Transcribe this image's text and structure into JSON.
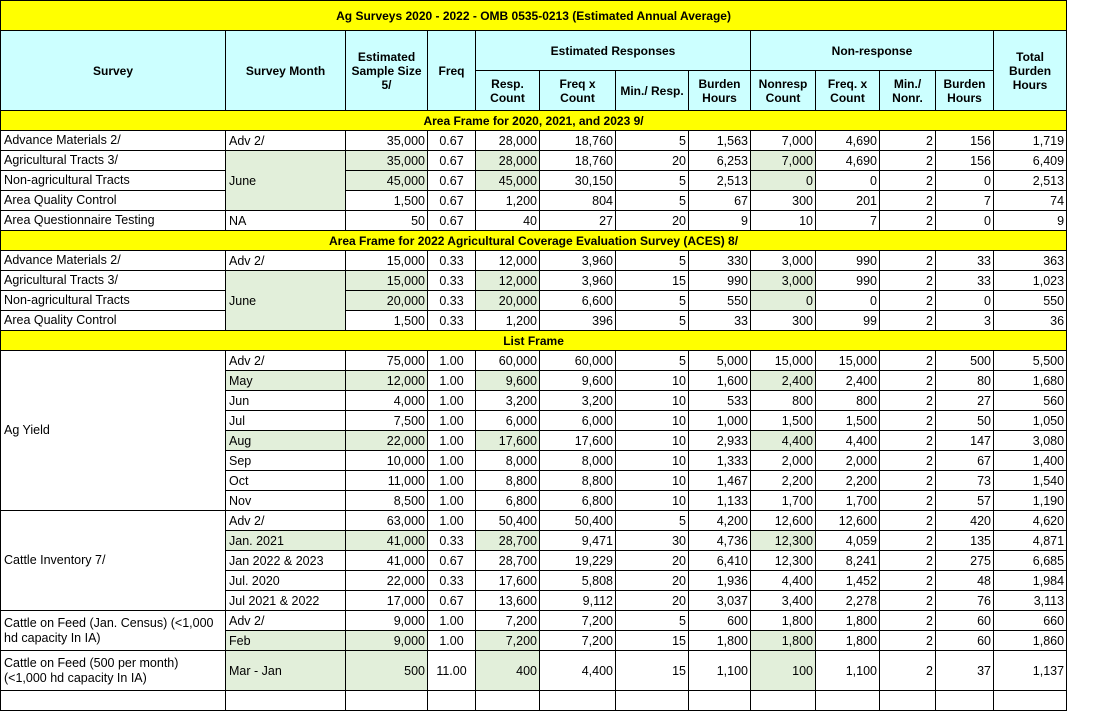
{
  "title": "Ag Surveys 2020 - 2022 - OMB 0535-0213 (Estimated Annual Average)",
  "headers": {
    "survey": "Survey",
    "month": "Survey Month",
    "sample": "Estimated Sample Size 5/",
    "freq": "Freq",
    "est_resp": "Estimated Responses",
    "nonresp": "Non-response",
    "total": "Total Burden Hours",
    "resp_count": "Resp. Count",
    "freq_x_count": "Freq x Count",
    "min_resp": "Min./ Resp.",
    "burden": "Burden Hours",
    "nonresp_count": "Nonresp Count",
    "freq_x_count2": "Freq. x Count",
    "min_nonr": "Min./ Nonr.",
    "burden2": "Burden Hours"
  },
  "shade_color": "#e2efda",
  "sections": [
    {
      "title": "Area Frame for 2020, 2021, and 2023  9/",
      "rows": [
        {
          "survey": "Advance Materials 2/",
          "month": "Adv 2/",
          "shaded": false,
          "v": [
            "35,000",
            "0.67",
            "28,000",
            "18,760",
            "5",
            "1,563",
            "7,000",
            "4,690",
            "2",
            "156",
            "1,719"
          ]
        },
        {
          "survey": "Agricultural Tracts 3/",
          "month": "June",
          "month_shaded": true,
          "shaded": true,
          "v": [
            "35,000",
            "0.67",
            "28,000",
            "18,760",
            "20",
            "6,253",
            "7,000",
            "4,690",
            "2",
            "156",
            "6,409"
          ]
        },
        {
          "survey": "Non-agricultural Tracts",
          "month": null,
          "shaded": true,
          "v": [
            "45,000",
            "0.67",
            "45,000",
            "30,150",
            "5",
            "2,513",
            "0",
            "0",
            "2",
            "0",
            "2,513"
          ]
        },
        {
          "survey": "Area Quality Control",
          "month": null,
          "shaded": false,
          "v": [
            "1,500",
            "0.67",
            "1,200",
            "804",
            "5",
            "67",
            "300",
            "201",
            "2",
            "7",
            "74"
          ]
        },
        {
          "survey": "Area Questionnaire Testing",
          "month": "NA",
          "shaded": false,
          "v": [
            "50",
            "0.67",
            "40",
            "27",
            "20",
            "9",
            "10",
            "7",
            "2",
            "0",
            "9"
          ]
        }
      ]
    },
    {
      "title": "Area Frame for 2022 Agricultural Coverage Evaluation Survey (ACES) 8/",
      "rows": [
        {
          "survey": "Advance Materials 2/",
          "month": "Adv 2/",
          "shaded": false,
          "v": [
            "15,000",
            "0.33",
            "12,000",
            "3,960",
            "5",
            "330",
            "3,000",
            "990",
            "2",
            "33",
            "363"
          ]
        },
        {
          "survey": "Agricultural Tracts 3/",
          "month": "June",
          "month_shaded": true,
          "shaded": true,
          "v": [
            "15,000",
            "0.33",
            "12,000",
            "3,960",
            "15",
            "990",
            "3,000",
            "990",
            "2",
            "33",
            "1,023"
          ]
        },
        {
          "survey": "Non-agricultural Tracts",
          "month": null,
          "shaded": true,
          "v": [
            "20,000",
            "0.33",
            "20,000",
            "6,600",
            "5",
            "550",
            "0",
            "0",
            "2",
            "0",
            "550"
          ]
        },
        {
          "survey": "Area Quality Control",
          "month": null,
          "shaded": false,
          "v": [
            "1,500",
            "0.33",
            "1,200",
            "396",
            "5",
            "33",
            "300",
            "99",
            "2",
            "3",
            "36"
          ]
        }
      ]
    },
    {
      "title": "List Frame",
      "rows": [
        {
          "survey": "Ag Yield",
          "month": "Adv 2/",
          "shaded": false,
          "v": [
            "75,000",
            "1.00",
            "60,000",
            "60,000",
            "5",
            "5,000",
            "15,000",
            "15,000",
            "2",
            "500",
            "5,500"
          ]
        },
        {
          "survey": null,
          "month": "May",
          "month_shaded": true,
          "shaded": true,
          "v": [
            "12,000",
            "1.00",
            "9,600",
            "9,600",
            "10",
            "1,600",
            "2,400",
            "2,400",
            "2",
            "80",
            "1,680"
          ]
        },
        {
          "survey": null,
          "month": "Jun",
          "shaded": false,
          "v": [
            "4,000",
            "1.00",
            "3,200",
            "3,200",
            "10",
            "533",
            "800",
            "800",
            "2",
            "27",
            "560"
          ]
        },
        {
          "survey": null,
          "month": "Jul",
          "shaded": false,
          "v": [
            "7,500",
            "1.00",
            "6,000",
            "6,000",
            "10",
            "1,000",
            "1,500",
            "1,500",
            "2",
            "50",
            "1,050"
          ]
        },
        {
          "survey": null,
          "month": "Aug",
          "month_shaded": true,
          "shaded": true,
          "v": [
            "22,000",
            "1.00",
            "17,600",
            "17,600",
            "10",
            "2,933",
            "4,400",
            "4,400",
            "2",
            "147",
            "3,080"
          ]
        },
        {
          "survey": null,
          "month": "Sep",
          "shaded": false,
          "v": [
            "10,000",
            "1.00",
            "8,000",
            "8,000",
            "10",
            "1,333",
            "2,000",
            "2,000",
            "2",
            "67",
            "1,400"
          ]
        },
        {
          "survey": null,
          "month": "Oct",
          "shaded": false,
          "v": [
            "11,000",
            "1.00",
            "8,800",
            "8,800",
            "10",
            "1,467",
            "2,200",
            "2,200",
            "2",
            "73",
            "1,540"
          ]
        },
        {
          "survey": null,
          "month": "Nov",
          "shaded": false,
          "v": [
            "8,500",
            "1.00",
            "6,800",
            "6,800",
            "10",
            "1,133",
            "1,700",
            "1,700",
            "2",
            "57",
            "1,190"
          ]
        },
        {
          "survey": "Cattle Inventory 7/",
          "month": "Adv 2/",
          "shaded": false,
          "v": [
            "63,000",
            "1.00",
            "50,400",
            "50,400",
            "5",
            "4,200",
            "12,600",
            "12,600",
            "2",
            "420",
            "4,620"
          ]
        },
        {
          "survey": null,
          "month": "Jan. 2021",
          "month_shaded": true,
          "shaded": true,
          "v": [
            "41,000",
            "0.33",
            "28,700",
            "9,471",
            "30",
            "4,736",
            "12,300",
            "4,059",
            "2",
            "135",
            "4,871"
          ]
        },
        {
          "survey": null,
          "month": "Jan 2022 & 2023",
          "shaded": false,
          "v": [
            "41,000",
            "0.67",
            "28,700",
            "19,229",
            "20",
            "6,410",
            "12,300",
            "8,241",
            "2",
            "275",
            "6,685"
          ]
        },
        {
          "survey": null,
          "month": "Jul. 2020",
          "shaded": false,
          "v": [
            "22,000",
            "0.33",
            "17,600",
            "5,808",
            "20",
            "1,936",
            "4,400",
            "1,452",
            "2",
            "48",
            "1,984"
          ]
        },
        {
          "survey": null,
          "month": "Jul 2021 & 2022",
          "shaded": false,
          "v": [
            "17,000",
            "0.67",
            "13,600",
            "9,112",
            "20",
            "3,037",
            "3,400",
            "2,278",
            "2",
            "76",
            "3,113"
          ]
        },
        {
          "survey": "Cattle on Feed (Jan. Census)  (<1,000 hd capacity In IA)",
          "month": "Adv 2/",
          "shaded": false,
          "v": [
            "9,000",
            "1.00",
            "7,200",
            "7,200",
            "5",
            "600",
            "1,800",
            "1,800",
            "2",
            "60",
            "660"
          ]
        },
        {
          "survey": null,
          "month": "Feb",
          "month_shaded": true,
          "shaded": true,
          "v": [
            "9,000",
            "1.00",
            "7,200",
            "7,200",
            "15",
            "1,800",
            "1,800",
            "1,800",
            "2",
            "60",
            "1,860"
          ]
        },
        {
          "survey": "Cattle on Feed (500 per month) (<1,000 hd capacity In IA)",
          "month": "Mar - Jan",
          "month_shaded": true,
          "shaded": true,
          "tall": true,
          "v": [
            "500",
            "11.00",
            "400",
            "4,400",
            "15",
            "1,100",
            "100",
            "1,100",
            "2",
            "37",
            "1,137"
          ]
        },
        {
          "survey": "",
          "month": "",
          "shaded": false,
          "v": [
            "",
            "",
            "",
            "",
            "",
            "",
            "",
            "",
            "",
            "",
            ""
          ]
        }
      ]
    }
  ]
}
